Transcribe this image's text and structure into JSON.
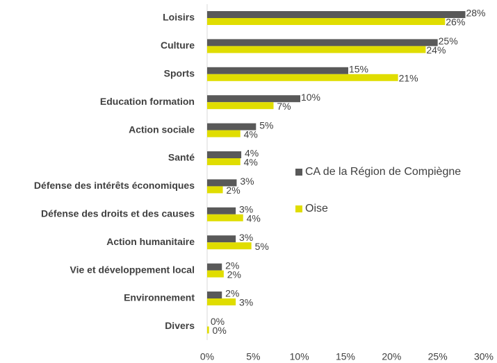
{
  "chart_data": {
    "type": "hbar",
    "categories": [
      "Loisirs",
      "Culture",
      "Sports",
      "Education formation",
      "Action sociale",
      "Santé",
      "Défense des intérêts économiques",
      "Défense des droits et des causes",
      "Action humanitaire",
      "Vie et développement local",
      "Environnement",
      "Divers"
    ],
    "series": [
      {
        "name": "CA de la Région de Compiègne",
        "color": "#595959",
        "values": [
          28,
          25,
          15.3,
          10.1,
          5.3,
          3.7,
          3.2,
          3.1,
          3.1,
          1.6,
          1.6,
          0
        ],
        "value_labels": [
          "28%",
          "25%",
          "15%",
          "10%",
          "5%",
          "4%",
          "3%",
          "3%",
          "3%",
          "2%",
          "2%",
          "0%"
        ]
      },
      {
        "name": "Oise",
        "color": "#e0dd00",
        "values": [
          25.8,
          23.7,
          20.7,
          7.2,
          3.6,
          3.6,
          1.7,
          3.9,
          4.8,
          1.8,
          3.1,
          0.2
        ],
        "value_labels": [
          "26%",
          "24%",
          "21%",
          "7%",
          "4%",
          "4%",
          "2%",
          "4%",
          "5%",
          "2%",
          "3%",
          "0%"
        ]
      }
    ],
    "xlim": [
      0,
      30
    ],
    "xticks": [
      {
        "value": 0,
        "label": "0%"
      },
      {
        "value": 5,
        "label": "5%"
      },
      {
        "value": 10,
        "label": "10%"
      },
      {
        "value": 15,
        "label": "15%"
      },
      {
        "value": 20,
        "label": "20%"
      },
      {
        "value": 25,
        "label": "25%"
      },
      {
        "value": 30,
        "label": "30%"
      }
    ],
    "legend": "right"
  }
}
